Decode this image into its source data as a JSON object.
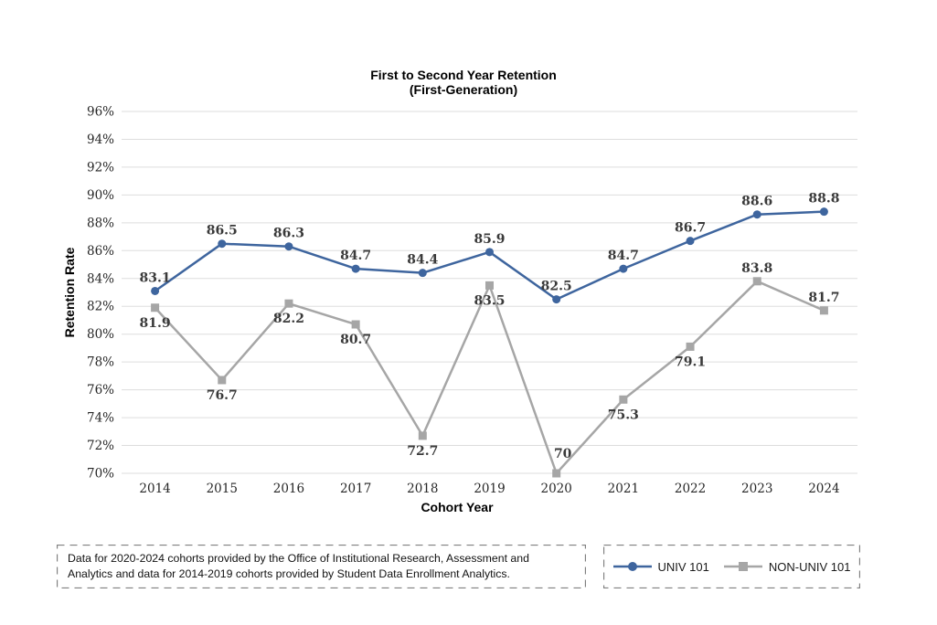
{
  "title": {
    "line1": "First to Second Year Retention",
    "line2": "(First-Generation)"
  },
  "chart_data": {
    "type": "line",
    "categories": [
      "2014",
      "2015",
      "2016",
      "2017",
      "2018",
      "2019",
      "2020",
      "2021",
      "2022",
      "2023",
      "2024"
    ],
    "series": [
      {
        "name": "UNIV 101",
        "color": "#3E659E",
        "marker": "circle",
        "values": [
          83.1,
          86.5,
          86.3,
          84.7,
          84.4,
          85.9,
          82.5,
          84.7,
          86.7,
          88.6,
          88.8
        ],
        "label_positions": [
          "above",
          "above",
          "above",
          "above",
          "above",
          "above",
          "above",
          "above",
          "above",
          "above",
          "above"
        ]
      },
      {
        "name": "NON-UNIV 101",
        "color": "#A6A6A6",
        "marker": "square",
        "values": [
          81.9,
          76.7,
          82.2,
          80.7,
          72.7,
          83.5,
          70,
          75.3,
          79.1,
          83.8,
          81.7
        ],
        "label_positions": [
          "below",
          "below",
          "below",
          "below",
          "below",
          "below",
          "above",
          "below",
          "below",
          "above",
          "above"
        ],
        "label_offsets": {
          "6": [
            7,
            -7
          ]
        }
      }
    ],
    "xlabel": "Cohort Year",
    "ylabel": "Retention Rate",
    "ylim": [
      70,
      96
    ],
    "ytick_step": 2,
    "ytick_suffix": "%",
    "grid": true,
    "gridline_color": "#DDDDDD",
    "legend_position": "bottom-right"
  },
  "footnote": {
    "lines": [
      "Data for 2020-2024 cohorts provided by the Office of Institutional Research, Assessment and",
      "Analytics and data for 2014-2019 cohorts provided by Student Data Enrollment Analytics."
    ]
  },
  "colors": {
    "univ_blue": "#3E659E",
    "non_univ_gray": "#A6A6A6",
    "gridline": "#DDDDDD",
    "dashed_border": "#7F7F7F"
  }
}
